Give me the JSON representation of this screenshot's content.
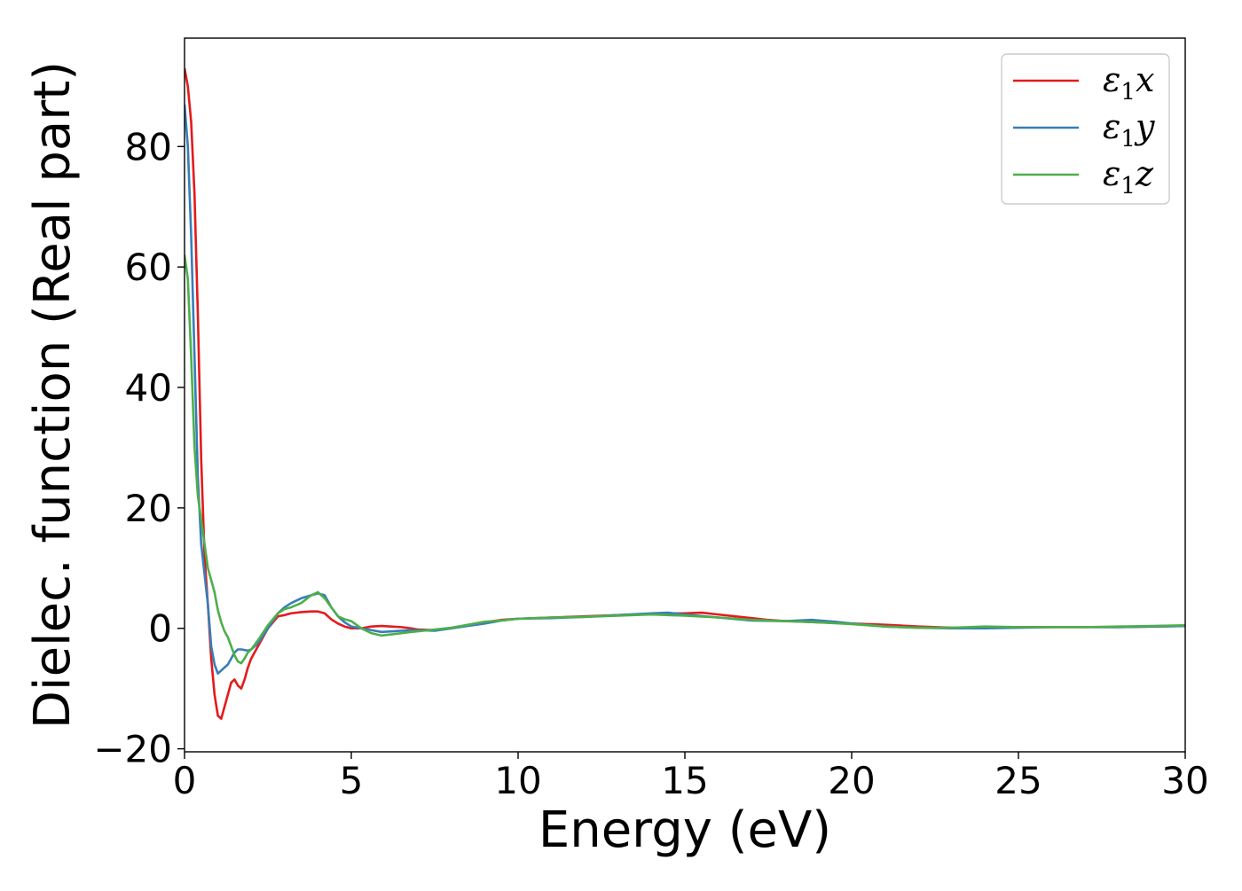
{
  "chart_data": {
    "type": "line",
    "title": "",
    "xlabel": "Energy (eV)",
    "ylabel": "Dielec. function (Real part)",
    "xlim": [
      0,
      30
    ],
    "ylim": [
      -20.5,
      98
    ],
    "xticks": [
      0,
      5,
      10,
      15,
      20,
      25,
      30
    ],
    "yticks": [
      -20,
      0,
      20,
      40,
      60,
      80
    ],
    "xtick_labels": [
      "0",
      "5",
      "10",
      "15",
      "20",
      "25",
      "30"
    ],
    "ytick_labels": [
      "−20",
      "0",
      "20",
      "40",
      "60",
      "80"
    ],
    "grid": false,
    "legend_position": "top-right",
    "series": [
      {
        "name": "ε₁x",
        "legend_base": "ε",
        "legend_sub": "1",
        "legend_tail": "x",
        "color": "#e41a1c",
        "x": [
          0,
          0.1,
          0.2,
          0.3,
          0.4,
          0.5,
          0.6,
          0.7,
          0.8,
          0.9,
          1.0,
          1.1,
          1.2,
          1.3,
          1.4,
          1.5,
          1.6,
          1.7,
          1.8,
          1.9,
          2.0,
          2.2,
          2.5,
          2.8,
          3.0,
          3.2,
          3.5,
          3.8,
          4.0,
          4.2,
          4.4,
          4.6,
          4.8,
          5.0,
          5.3,
          5.6,
          5.9,
          6.2,
          6.5,
          6.8,
          7.0,
          7.5,
          8.0,
          8.5,
          9.0,
          9.5,
          10.0,
          11.0,
          12.0,
          13.0,
          14.0,
          15.0,
          15.5,
          16.0,
          16.5,
          17.0,
          17.5,
          18.0,
          19.0,
          20.0,
          21.0,
          22.0,
          23.0,
          24.0,
          25.0,
          26.0,
          27.0,
          28.0,
          29.0,
          30.0
        ],
        "values": [
          93,
          90,
          84,
          72,
          52,
          28,
          12,
          4,
          -5,
          -11,
          -14.5,
          -15,
          -13,
          -11,
          -9,
          -8.5,
          -9.5,
          -10,
          -8.5,
          -6.5,
          -5,
          -3,
          0,
          2,
          2.2,
          2.5,
          2.7,
          2.8,
          2.8,
          2.5,
          1.5,
          0.8,
          0.3,
          0,
          0,
          0.3,
          0.4,
          0.3,
          0.2,
          0,
          -0.2,
          -0.3,
          0,
          0.5,
          1,
          1.4,
          1.6,
          1.8,
          2.0,
          2.2,
          2.4,
          2.5,
          2.6,
          2.3,
          2.0,
          1.7,
          1.4,
          1.2,
          1.0,
          0.8,
          0.6,
          0.3,
          0.1,
          0.1,
          0.2,
          0.2,
          0.2,
          0.2,
          0.3,
          0.4
        ]
      },
      {
        "name": "ε₁y",
        "legend_base": "ε",
        "legend_sub": "1",
        "legend_tail": "y",
        "color": "#377eb8",
        "x": [
          0,
          0.1,
          0.2,
          0.3,
          0.4,
          0.5,
          0.6,
          0.7,
          0.8,
          0.9,
          1.0,
          1.1,
          1.2,
          1.3,
          1.4,
          1.5,
          1.6,
          1.7,
          1.8,
          1.9,
          2.0,
          2.2,
          2.5,
          2.8,
          3.0,
          3.2,
          3.5,
          3.8,
          4.0,
          4.2,
          4.4,
          4.6,
          4.8,
          5.0,
          5.3,
          5.6,
          5.9,
          6.2,
          6.5,
          6.8,
          7.0,
          7.5,
          8.0,
          8.5,
          9.0,
          9.5,
          10.0,
          11.0,
          12.0,
          13.0,
          14.0,
          14.5,
          15.0,
          16.0,
          17.0,
          18.0,
          18.8,
          19.5,
          20.0,
          21.0,
          22.0,
          23.0,
          24.0,
          25.0,
          26.0,
          27.0,
          28.0,
          29.0,
          30.0
        ],
        "values": [
          87,
          80,
          65,
          45,
          25,
          14,
          9,
          4,
          -3,
          -6,
          -7.5,
          -7,
          -6.5,
          -6,
          -5,
          -4,
          -3.5,
          -3.5,
          -3.6,
          -3.7,
          -3.5,
          -2.5,
          0,
          2.5,
          3.5,
          4.2,
          5,
          5.5,
          5.8,
          5.5,
          3.5,
          2,
          1,
          0.3,
          0,
          -0.3,
          -0.6,
          -0.5,
          -0.4,
          -0.3,
          -0.3,
          -0.4,
          0,
          0.4,
          0.8,
          1.3,
          1.6,
          1.7,
          1.9,
          2.2,
          2.5,
          2.6,
          2.3,
          1.8,
          1.3,
          1.2,
          1.4,
          1.1,
          0.8,
          0.3,
          0.1,
          0.0,
          0.0,
          0.1,
          0.2,
          0.2,
          0.2,
          0.3,
          0.4
        ]
      },
      {
        "name": "ε₁z",
        "legend_base": "ε",
        "legend_sub": "1",
        "legend_tail": "z",
        "color": "#4daf4a",
        "x": [
          0,
          0.1,
          0.2,
          0.3,
          0.4,
          0.5,
          0.6,
          0.7,
          0.8,
          0.9,
          1.0,
          1.1,
          1.2,
          1.3,
          1.4,
          1.5,
          1.6,
          1.7,
          1.8,
          1.9,
          2.0,
          2.2,
          2.5,
          2.8,
          3.0,
          3.2,
          3.5,
          3.8,
          4.0,
          4.2,
          4.4,
          4.6,
          4.8,
          5.0,
          5.3,
          5.6,
          5.9,
          6.2,
          6.5,
          6.8,
          7.0,
          7.5,
          8.0,
          8.5,
          9.0,
          9.5,
          10.0,
          11.0,
          12.0,
          13.0,
          14.0,
          15.0,
          16.0,
          17.0,
          18.0,
          19.0,
          20.0,
          21.0,
          22.0,
          23.0,
          24.0,
          25.0,
          26.0,
          27.0,
          28.0,
          29.0,
          30.0
        ],
        "values": [
          62,
          58,
          45,
          30,
          22,
          18,
          14,
          10,
          8,
          6,
          3,
          1,
          -0.5,
          -1.5,
          -3,
          -4.5,
          -5.5,
          -5.8,
          -5,
          -4,
          -3.5,
          -2,
          0.5,
          2.5,
          3.2,
          3.5,
          4.2,
          5.5,
          6,
          5,
          3.5,
          2,
          1.5,
          1.2,
          0,
          -0.8,
          -1.2,
          -1.0,
          -0.8,
          -0.6,
          -0.5,
          -0.2,
          0.1,
          0.6,
          1.1,
          1.3,
          1.6,
          1.8,
          1.9,
          2.1,
          2.3,
          2.1,
          1.8,
          1.4,
          1.2,
          1.0,
          0.7,
          0.3,
          0.1,
          0.1,
          0.3,
          0.2,
          0.2,
          0.2,
          0.3,
          0.4,
          0.5
        ]
      }
    ]
  }
}
